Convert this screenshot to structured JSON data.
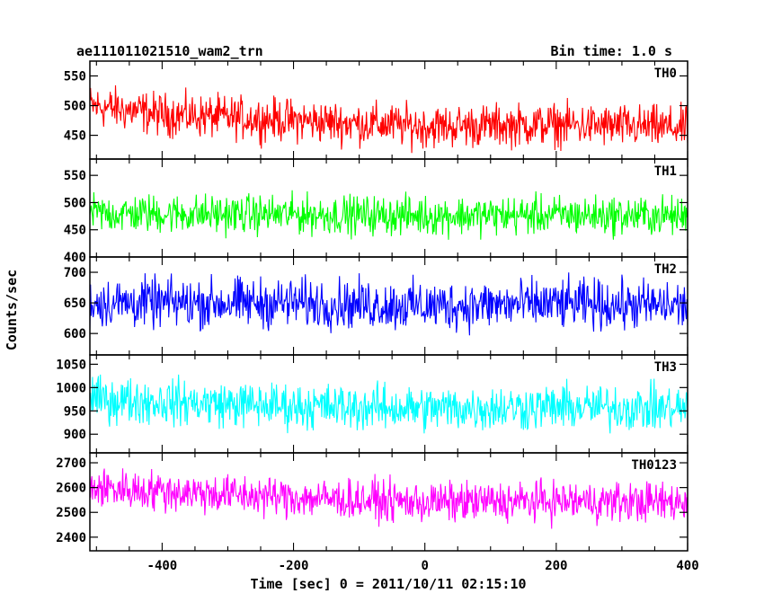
{
  "header": {
    "title": "ae111011021510_wam2_trn",
    "bin_time": "Bin time: 1.0 s"
  },
  "axes": {
    "ylabel": "Counts/sec",
    "xlabel": "Time [sec] 0 = 2011/10/11 02:15:10",
    "x_ticks": [
      "-400",
      "-200",
      "0",
      "200",
      "400"
    ]
  },
  "chart_data": {
    "type": "line",
    "xlim": [
      -510,
      400
    ],
    "x_range": [
      -510,
      400
    ],
    "x_step": 1,
    "panels": [
      {
        "name": "TH0",
        "color": "#ff0000",
        "ylim": [
          410,
          575
        ],
        "yticks": [
          450,
          500,
          550
        ],
        "trend": [
          [
            -510,
            500
          ],
          [
            -400,
            485
          ],
          [
            -200,
            475
          ],
          [
            0,
            465
          ],
          [
            200,
            468
          ],
          [
            400,
            462
          ]
        ],
        "spread": 22
      },
      {
        "name": "TH1",
        "color": "#00ff00",
        "ylim": [
          400,
          580
        ],
        "yticks": [
          400,
          450,
          500,
          550
        ],
        "trend": [
          [
            -510,
            480
          ],
          [
            -200,
            478
          ],
          [
            0,
            476
          ],
          [
            200,
            477
          ],
          [
            400,
            475
          ]
        ],
        "spread": 22
      },
      {
        "name": "TH2",
        "color": "#0000ff",
        "ylim": [
          565,
          725
        ],
        "yticks": [
          600,
          650,
          700
        ],
        "trend": [
          [
            -510,
            650
          ],
          [
            -200,
            650
          ],
          [
            0,
            645
          ],
          [
            200,
            648
          ],
          [
            400,
            645
          ]
        ],
        "spread": 25
      },
      {
        "name": "TH3",
        "color": "#00ffff",
        "ylim": [
          860,
          1070
        ],
        "yticks": [
          900,
          950,
          1000,
          1050
        ],
        "trend": [
          [
            -510,
            975
          ],
          [
            -200,
            960
          ],
          [
            0,
            955
          ],
          [
            200,
            958
          ],
          [
            400,
            955
          ]
        ],
        "spread": 30
      },
      {
        "name": "TH0123",
        "color": "#ff00ff",
        "ylim": [
          2345,
          2740
        ],
        "yticks": [
          2400,
          2500,
          2600,
          2700
        ],
        "trend": [
          [
            -510,
            2600
          ],
          [
            -200,
            2560
          ],
          [
            0,
            2540
          ],
          [
            200,
            2545
          ],
          [
            400,
            2540
          ]
        ],
        "spread": 50
      }
    ]
  }
}
